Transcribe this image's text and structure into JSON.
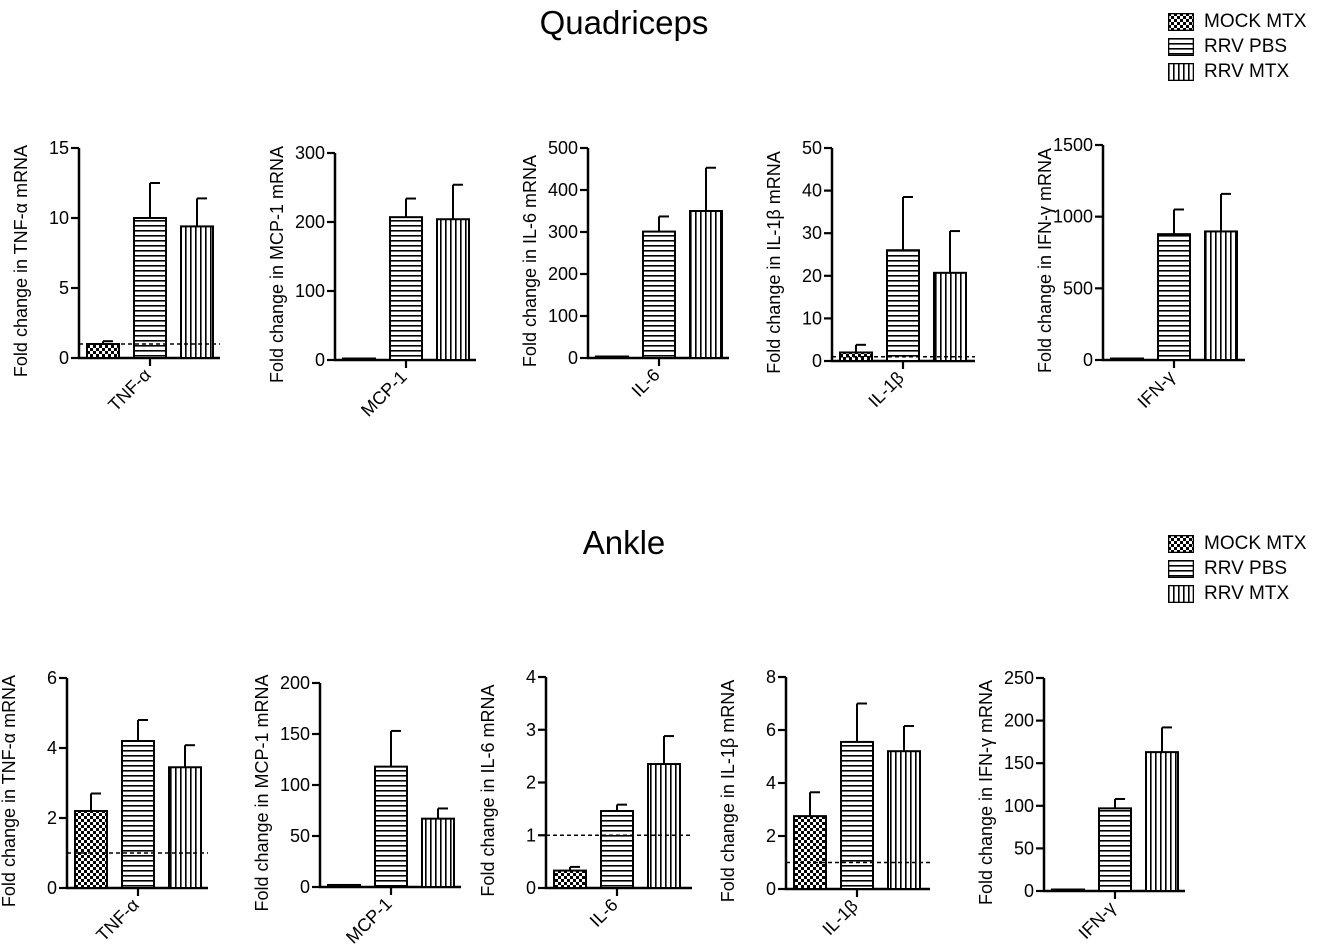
{
  "sections": [
    {
      "title": "Quadriceps",
      "legend": [
        {
          "label": "MOCK MTX",
          "pattern": "checker"
        },
        {
          "label": "RRV PBS",
          "pattern": "hlines"
        },
        {
          "label": "RRV MTX",
          "pattern": "vlines"
        }
      ]
    },
    {
      "title": "Ankle",
      "legend": [
        {
          "label": "MOCK MTX",
          "pattern": "checker"
        },
        {
          "label": "RRV PBS",
          "pattern": "hlines"
        },
        {
          "label": "RRV MTX",
          "pattern": "vlines"
        }
      ]
    }
  ],
  "chart_data": [
    {
      "type": "bar",
      "section": "Quadriceps",
      "ylabel": "Fold change in TNF-α mRNA",
      "category": "TNF-α",
      "ylim": [
        0,
        15
      ],
      "yticks": [
        0,
        5,
        10,
        15
      ],
      "baseline": 1,
      "series": [
        {
          "name": "MOCK MTX",
          "value": 1.0,
          "error": 0.2
        },
        {
          "name": "RRV PBS",
          "value": 10.0,
          "error": 2.5
        },
        {
          "name": "RRV MTX",
          "value": 9.4,
          "error": 2.0
        }
      ]
    },
    {
      "type": "bar",
      "section": "Quadriceps",
      "ylabel": "Fold change in MCP-1 mRNA",
      "category": "MCP-1",
      "ylim": [
        0,
        300
      ],
      "yticks": [
        0,
        100,
        200,
        300
      ],
      "series": [
        {
          "name": "MOCK MTX",
          "value": 1,
          "error": 0
        },
        {
          "name": "RRV PBS",
          "value": 207,
          "error": 27
        },
        {
          "name": "RRV MTX",
          "value": 204,
          "error": 50
        }
      ]
    },
    {
      "type": "bar",
      "section": "Quadriceps",
      "ylabel": "Fold change in IL-6 mRNA",
      "category": "IL-6",
      "ylim": [
        0,
        500
      ],
      "yticks": [
        0,
        100,
        200,
        300,
        400,
        500
      ],
      "series": [
        {
          "name": "MOCK MTX",
          "value": 1,
          "error": 0
        },
        {
          "name": "RRV PBS",
          "value": 301,
          "error": 36
        },
        {
          "name": "RRV MTX",
          "value": 350,
          "error": 103
        }
      ]
    },
    {
      "type": "bar",
      "section": "Quadriceps",
      "ylabel": "Fold change in IL-1β mRNA",
      "category": "IL-1β",
      "ylim": [
        0,
        50
      ],
      "yticks": [
        0,
        10,
        20,
        30,
        40,
        50
      ],
      "baseline": 1,
      "series": [
        {
          "name": "MOCK MTX",
          "value": 2.0,
          "error": 1.8
        },
        {
          "name": "RRV PBS",
          "value": 26,
          "error": 12.5
        },
        {
          "name": "RRV MTX",
          "value": 20.7,
          "error": 9.8
        }
      ]
    },
    {
      "type": "bar",
      "section": "Quadriceps",
      "ylabel": "Fold change in IFN-γ mRNA",
      "category": "IFN-γ",
      "ylim": [
        0,
        1500
      ],
      "yticks": [
        0,
        500,
        1000,
        1500
      ],
      "series": [
        {
          "name": "MOCK MTX",
          "value": 2,
          "error": 0
        },
        {
          "name": "RRV PBS",
          "value": 878,
          "error": 172
        },
        {
          "name": "RRV MTX",
          "value": 897,
          "error": 262
        }
      ]
    },
    {
      "type": "bar",
      "section": "Ankle",
      "ylabel": "Fold change in TNF-α mRNA",
      "category": "TNF-α",
      "ylim": [
        0,
        6
      ],
      "yticks": [
        0,
        2,
        4,
        6
      ],
      "baseline": 1,
      "series": [
        {
          "name": "MOCK MTX",
          "value": 2.2,
          "error": 0.5
        },
        {
          "name": "RRV PBS",
          "value": 4.2,
          "error": 0.6
        },
        {
          "name": "RRV MTX",
          "value": 3.45,
          "error": 0.63
        }
      ]
    },
    {
      "type": "bar",
      "section": "Ankle",
      "ylabel": "Fold change in MCP-1 mRNA",
      "category": "MCP-1",
      "ylim": [
        0,
        200
      ],
      "yticks": [
        0,
        50,
        100,
        150,
        200
      ],
      "series": [
        {
          "name": "MOCK MTX",
          "value": 2,
          "error": 0
        },
        {
          "name": "RRV PBS",
          "value": 118,
          "error": 35
        },
        {
          "name": "RRV MTX",
          "value": 67,
          "error": 10
        }
      ]
    },
    {
      "type": "bar",
      "section": "Ankle",
      "ylabel": "Fold change in IL-6 mRNA",
      "category": "IL-6",
      "ylim": [
        0,
        4
      ],
      "yticks": [
        0,
        1,
        2,
        3,
        4
      ],
      "baseline": 1,
      "series": [
        {
          "name": "MOCK MTX",
          "value": 0.33,
          "error": 0.07
        },
        {
          "name": "RRV PBS",
          "value": 1.46,
          "error": 0.12
        },
        {
          "name": "RRV MTX",
          "value": 2.35,
          "error": 0.53
        }
      ]
    },
    {
      "type": "bar",
      "section": "Ankle",
      "ylabel": "Fold change in IL-1β mRNA",
      "category": "IL-1β",
      "ylim": [
        0,
        8
      ],
      "yticks": [
        0,
        2,
        4,
        6,
        8
      ],
      "baseline": 1,
      "series": [
        {
          "name": "MOCK MTX",
          "value": 2.75,
          "error": 0.9
        },
        {
          "name": "RRV PBS",
          "value": 5.55,
          "error": 1.45
        },
        {
          "name": "RRV MTX",
          "value": 5.2,
          "error": 0.95
        }
      ]
    },
    {
      "type": "bar",
      "section": "Ankle",
      "ylabel": "Fold change in IFN-γ mRNA",
      "category": "IFN-γ",
      "ylim": [
        0,
        250
      ],
      "yticks": [
        0,
        50,
        100,
        150,
        200,
        250
      ],
      "series": [
        {
          "name": "MOCK MTX",
          "value": 1,
          "error": 0
        },
        {
          "name": "RRV PBS",
          "value": 97,
          "error": 11
        },
        {
          "name": "RRV MTX",
          "value": 163,
          "error": 29
        }
      ]
    }
  ]
}
